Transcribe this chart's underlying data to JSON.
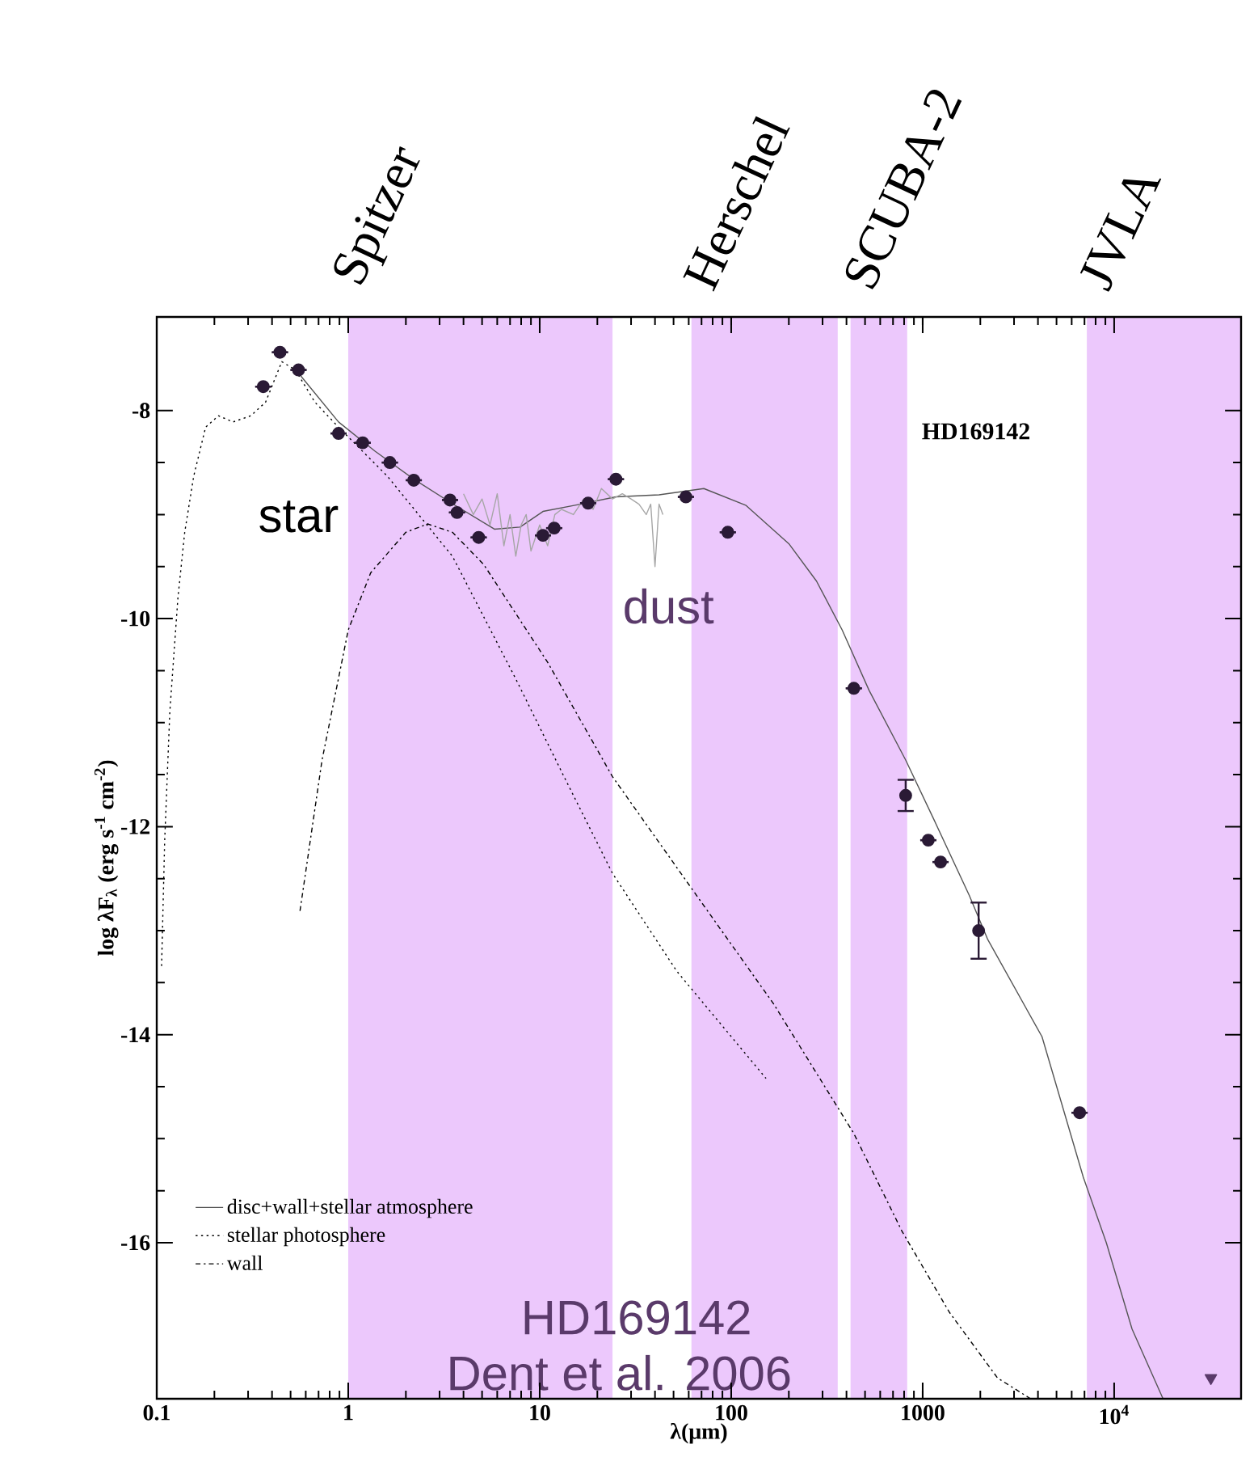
{
  "chart_data": {
    "type": "scatter",
    "xlabel": "λ(μm)",
    "ylabel": "log λF$_{λ}$ (erg s$^{-1}$ cm$^{-2}$)",
    "log": "x",
    "xlim": [
      0.1,
      46000
    ],
    "ylim": [
      -17.5,
      -7.1
    ],
    "xticks": [
      0.1,
      1,
      10,
      100,
      1000,
      {
        "value": 10000,
        "label": "10$^{4}$"
      }
    ],
    "yticks": [
      -8,
      -10,
      -12,
      -14,
      -16
    ],
    "legend": "bottom left",
    "bands": [
      {
        "axis": "x",
        "from": 1,
        "to": 24,
        "label": "Spitzer",
        "color": "#ecc8fc"
      },
      {
        "axis": "x",
        "from": 62,
        "to": 360,
        "label": "Herschel",
        "color": "#ecc8fc"
      },
      {
        "axis": "x",
        "from": 420,
        "to": 830,
        "label": "SCUBA-2",
        "color": "#ecc8fc"
      },
      {
        "axis": "x",
        "from": 7200,
        "to": 46000,
        "label": "JVLA",
        "color": "#ecc8fc"
      }
    ],
    "annotations": [
      "star",
      "dust",
      "HD169142",
      "HD169142",
      "Dent et al. 2006"
    ],
    "series": [
      {
        "type": "line",
        "color": "#a6a6a6",
        "line_style": "solid",
        "marker": "none",
        "x": [
          4.0,
          4.5,
          5,
          5.5,
          6,
          6.5,
          7,
          7.5,
          8,
          8.5,
          9,
          10,
          11,
          12,
          13,
          15,
          17,
          19,
          21,
          24,
          27,
          30,
          33,
          36,
          38,
          40,
          42,
          44
        ],
        "values": [
          -8.8,
          -9.0,
          -8.85,
          -9.1,
          -8.8,
          -9.3,
          -9.0,
          -9.4,
          -9.1,
          -9.0,
          -9.35,
          -9.1,
          -9.3,
          -9.0,
          -8.95,
          -9.0,
          -8.85,
          -8.95,
          -8.75,
          -8.85,
          -8.8,
          -8.85,
          -8.9,
          -9.0,
          -8.9,
          -9.5,
          -8.9,
          -9.0
        ]
      },
      {
        "type": "line",
        "name": "stellar photosphere",
        "color": "#000000",
        "line_style": "dotted",
        "marker": "none",
        "x": [
          0.106,
          0.11,
          0.117,
          0.129,
          0.14,
          0.156,
          0.18,
          0.21,
          0.25,
          0.31,
          0.37,
          0.45,
          0.53,
          0.67,
          0.89,
          1.6,
          3.5,
          7.5,
          13.4,
          24,
          52,
          152
        ],
        "values": [
          -13.34,
          -12.14,
          -10.9,
          -9.8,
          -9.17,
          -8.63,
          -8.16,
          -8.05,
          -8.11,
          -8.05,
          -7.92,
          -7.53,
          -7.61,
          -7.92,
          -8.16,
          -8.63,
          -9.4,
          -10.58,
          -11.52,
          -12.45,
          -13.39,
          -14.42
        ]
      },
      {
        "type": "line",
        "name": "wall",
        "color": "#000000",
        "line_style": "dashdot",
        "marker": "none",
        "x": [
          0.56,
          0.73,
          1.0,
          1.31,
          2.0,
          2.6,
          3.5,
          5.1,
          11.0,
          24,
          63,
          166,
          437,
          780,
          1380,
          2460,
          3660
        ],
        "values": [
          -12.81,
          -11.36,
          -10.11,
          -9.56,
          -9.17,
          -9.09,
          -9.17,
          -9.48,
          -10.42,
          -11.52,
          -12.61,
          -13.7,
          -14.95,
          -15.89,
          -16.67,
          -17.3,
          -17.5
        ]
      },
      {
        "type": "line",
        "name": "disc+wall+stellar atmosphere",
        "color": "#555555",
        "line_style": "solid",
        "marker": "none",
        "x": [
          0.55,
          0.89,
          1.38,
          2.2,
          3.46,
          5.8,
          7.9,
          10.4,
          15.3,
          25,
          42,
          72,
          119,
          200,
          279,
          380,
          525,
          815,
          1150,
          1750,
          2180,
          4200,
          6900,
          9100,
          12400,
          18000
        ],
        "values": [
          -7.64,
          -8.11,
          -8.39,
          -8.66,
          -8.89,
          -9.14,
          -9.12,
          -8.97,
          -8.91,
          -8.83,
          -8.81,
          -8.75,
          -8.91,
          -9.28,
          -9.64,
          -10.11,
          -10.69,
          -11.36,
          -11.94,
          -12.66,
          -13.08,
          -14.02,
          -15.37,
          -16.0,
          -16.83,
          -17.5
        ]
      },
      {
        "color": "#2a1a35",
        "marker": "circle",
        "x": [
          0.36,
          0.44,
          0.55,
          0.89,
          1.19,
          1.65,
          2.2,
          3.4,
          3.7,
          4.8,
          10.4,
          11.9,
          17.9,
          25,
          58,
          96,
          437,
          815,
          1070,
          1240,
          1960,
          6600
        ],
        "values": [
          -7.77,
          -7.44,
          -7.61,
          -8.22,
          -8.31,
          -8.5,
          -8.67,
          -8.86,
          -8.98,
          -9.22,
          -9.2,
          -9.13,
          -8.89,
          -8.66,
          -8.83,
          -9.17,
          -10.67,
          -11.7,
          -12.13,
          -12.34,
          -13.0,
          -14.75
        ],
        "errors": [
          null,
          null,
          null,
          null,
          null,
          null,
          null,
          null,
          null,
          null,
          null,
          null,
          null,
          null,
          null,
          null,
          null,
          0.15,
          null,
          null,
          0.27,
          null
        ]
      },
      {
        "color": "#5a3a6a",
        "marker": "triangle",
        "x": [
          32000
        ],
        "values": [
          -17.3
        ]
      }
    ]
  }
}
